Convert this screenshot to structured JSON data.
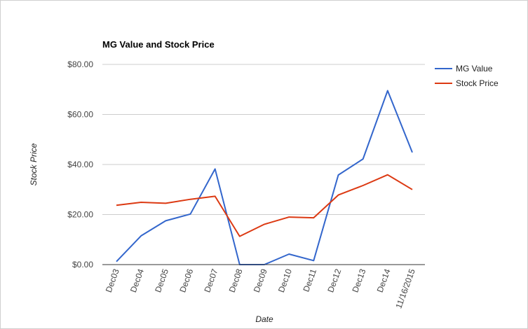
{
  "chart_data": {
    "type": "line",
    "title": "MG Value and Stock Price",
    "xlabel": "Date",
    "ylabel": "Stock Price",
    "categories": [
      "Dec03",
      "Dec04",
      "Dec05",
      "Dec06",
      "Dec07",
      "Dec08",
      "Dec09",
      "Dec10",
      "Dec11",
      "Dec12",
      "Dec13",
      "Dec14",
      "11/16/2015"
    ],
    "y_ticks": [
      "$0.00",
      "$20.00",
      "$40.00",
      "$60.00",
      "$80.00"
    ],
    "ylim": [
      0,
      80
    ],
    "grid": true,
    "legend_position": "right",
    "series": [
      {
        "name": "MG Value",
        "color": "#3366cc",
        "values": [
          1.2,
          11.5,
          17.5,
          20.2,
          38.2,
          0,
          0,
          4.2,
          1.6,
          35.8,
          42.2,
          69.5,
          44.8
        ]
      },
      {
        "name": "Stock Price",
        "color": "#dc3912",
        "values": [
          23.7,
          24.9,
          24.5,
          26.1,
          27.3,
          11.3,
          16.1,
          19.0,
          18.7,
          27.8,
          31.6,
          35.9,
          30.0
        ]
      }
    ]
  }
}
